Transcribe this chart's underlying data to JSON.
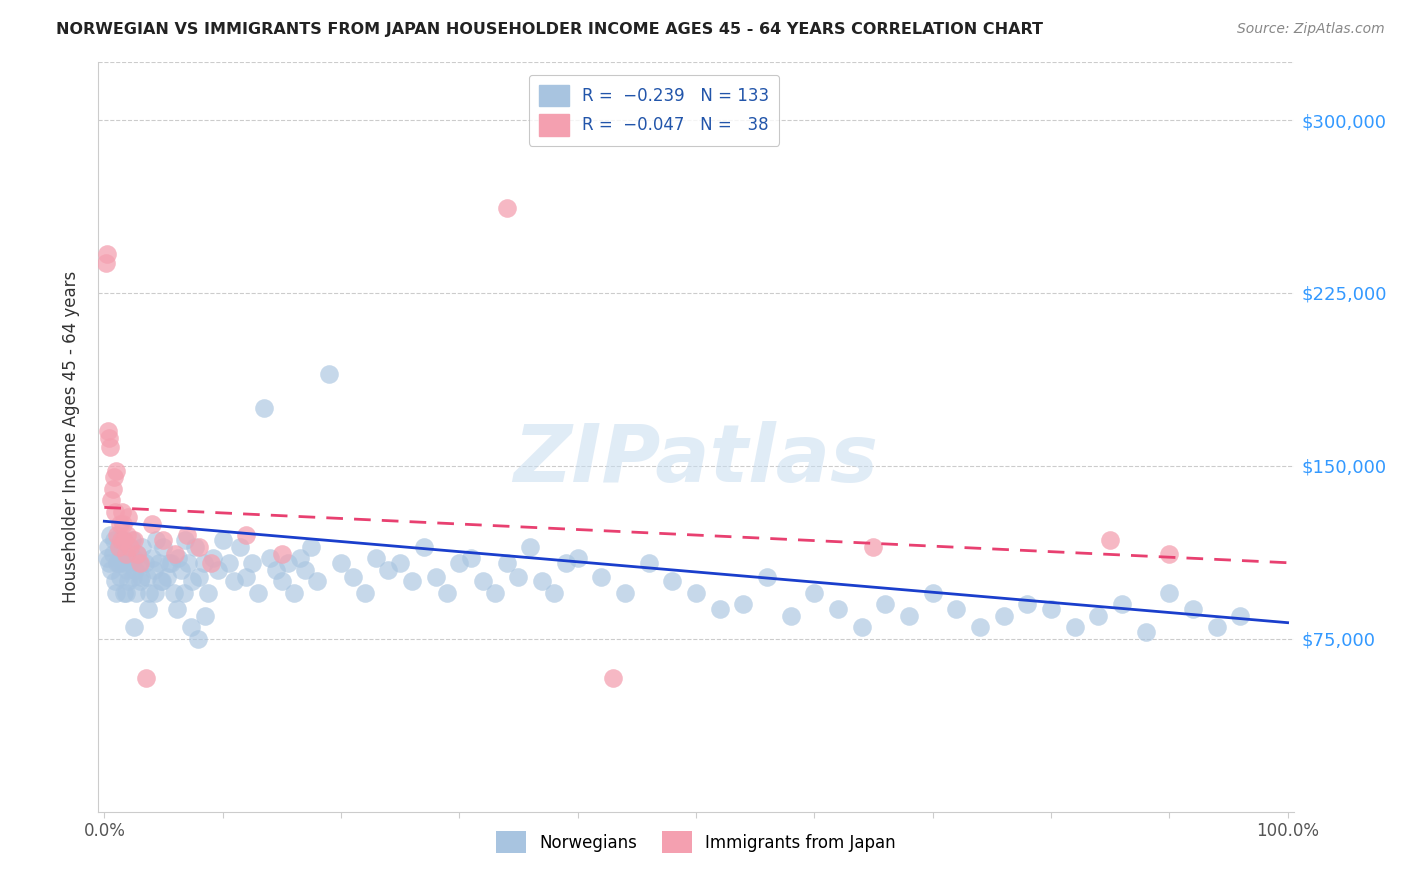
{
  "title": "NORWEGIAN VS IMMIGRANTS FROM JAPAN HOUSEHOLDER INCOME AGES 45 - 64 YEARS CORRELATION CHART",
  "source": "Source: ZipAtlas.com",
  "ylabel": "Householder Income Ages 45 - 64 years",
  "y_tick_labels": [
    "$75,000",
    "$150,000",
    "$225,000",
    "$300,000"
  ],
  "y_tick_values": [
    75000,
    150000,
    225000,
    300000
  ],
  "ylim": [
    0,
    325000
  ],
  "xlim": [
    -0.005,
    1.005
  ],
  "legend_group1": "Norwegians",
  "legend_group2": "Immigrants from Japan",
  "blue_color": "#A8C4E0",
  "pink_color": "#F4A0B0",
  "line_blue": "#1A3ECC",
  "line_pink": "#E84070",
  "nor_x": [
    0.002,
    0.003,
    0.004,
    0.005,
    0.006,
    0.007,
    0.008,
    0.009,
    0.01,
    0.011,
    0.012,
    0.013,
    0.014,
    0.015,
    0.016,
    0.017,
    0.018,
    0.019,
    0.02,
    0.021,
    0.022,
    0.023,
    0.024,
    0.025,
    0.026,
    0.027,
    0.028,
    0.029,
    0.03,
    0.032,
    0.034,
    0.036,
    0.038,
    0.04,
    0.042,
    0.044,
    0.046,
    0.048,
    0.05,
    0.053,
    0.056,
    0.059,
    0.062,
    0.065,
    0.068,
    0.071,
    0.074,
    0.077,
    0.08,
    0.084,
    0.088,
    0.092,
    0.096,
    0.1,
    0.105,
    0.11,
    0.115,
    0.12,
    0.125,
    0.13,
    0.135,
    0.14,
    0.145,
    0.15,
    0.155,
    0.16,
    0.165,
    0.17,
    0.175,
    0.18,
    0.19,
    0.2,
    0.21,
    0.22,
    0.23,
    0.24,
    0.25,
    0.26,
    0.27,
    0.28,
    0.29,
    0.3,
    0.31,
    0.32,
    0.33,
    0.34,
    0.35,
    0.36,
    0.37,
    0.38,
    0.39,
    0.4,
    0.42,
    0.44,
    0.46,
    0.48,
    0.5,
    0.52,
    0.54,
    0.56,
    0.58,
    0.6,
    0.62,
    0.64,
    0.66,
    0.68,
    0.7,
    0.72,
    0.74,
    0.76,
    0.78,
    0.8,
    0.82,
    0.84,
    0.86,
    0.88,
    0.9,
    0.92,
    0.94,
    0.96,
    0.012,
    0.018,
    0.025,
    0.031,
    0.037,
    0.043,
    0.049,
    0.055,
    0.061,
    0.067,
    0.073,
    0.079,
    0.085
  ],
  "nor_y": [
    110000,
    115000,
    108000,
    120000,
    105000,
    112000,
    118000,
    100000,
    95000,
    108000,
    115000,
    102000,
    110000,
    118000,
    108000,
    95000,
    112000,
    105000,
    100000,
    115000,
    108000,
    118000,
    102000,
    110000,
    105000,
    95000,
    112000,
    108000,
    100000,
    115000,
    108000,
    102000,
    95000,
    110000,
    105000,
    118000,
    108000,
    100000,
    115000,
    102000,
    108000,
    95000,
    110000,
    105000,
    118000,
    108000,
    100000,
    115000,
    102000,
    108000,
    95000,
    110000,
    105000,
    118000,
    108000,
    100000,
    115000,
    102000,
    108000,
    95000,
    175000,
    110000,
    105000,
    100000,
    108000,
    95000,
    110000,
    105000,
    115000,
    100000,
    190000,
    108000,
    102000,
    95000,
    110000,
    105000,
    108000,
    100000,
    115000,
    102000,
    95000,
    108000,
    110000,
    100000,
    95000,
    108000,
    102000,
    115000,
    100000,
    95000,
    108000,
    110000,
    102000,
    95000,
    108000,
    100000,
    95000,
    88000,
    90000,
    102000,
    85000,
    95000,
    88000,
    80000,
    90000,
    85000,
    95000,
    88000,
    80000,
    85000,
    90000,
    88000,
    80000,
    85000,
    90000,
    78000,
    95000,
    88000,
    80000,
    85000,
    108000,
    95000,
    80000,
    102000,
    88000,
    95000,
    100000,
    108000,
    88000,
    95000,
    80000,
    75000,
    85000
  ],
  "jap_x": [
    0.001,
    0.002,
    0.003,
    0.004,
    0.005,
    0.006,
    0.007,
    0.008,
    0.009,
    0.01,
    0.011,
    0.012,
    0.013,
    0.014,
    0.015,
    0.016,
    0.017,
    0.018,
    0.019,
    0.02,
    0.022,
    0.025,
    0.028,
    0.03,
    0.035,
    0.04,
    0.05,
    0.06,
    0.07,
    0.08,
    0.09,
    0.12,
    0.15,
    0.34,
    0.43,
    0.65,
    0.85,
    0.9
  ],
  "jap_y": [
    238000,
    242000,
    165000,
    162000,
    158000,
    135000,
    140000,
    145000,
    130000,
    148000,
    120000,
    115000,
    125000,
    118000,
    130000,
    125000,
    118000,
    112000,
    120000,
    128000,
    115000,
    118000,
    112000,
    108000,
    58000,
    125000,
    118000,
    112000,
    120000,
    115000,
    108000,
    120000,
    112000,
    262000,
    58000,
    115000,
    118000,
    112000
  ],
  "blue_line_x": [
    0.0,
    1.0
  ],
  "blue_line_y": [
    126000,
    82000
  ],
  "pink_line_x": [
    0.0,
    1.0
  ],
  "pink_line_y": [
    132000,
    108000
  ]
}
